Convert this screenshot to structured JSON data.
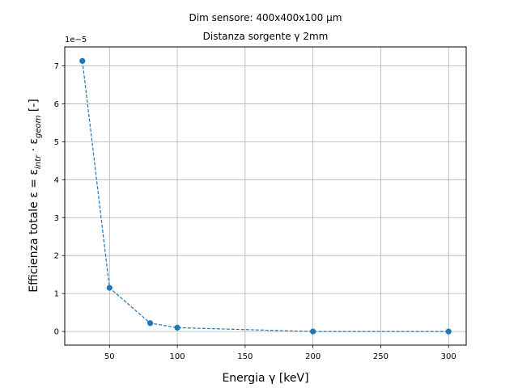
{
  "chart_data": {
    "type": "line",
    "title_line1": "Dim sensore: 400x400x100 μm",
    "title_line2": "Distanza sorgente γ 2mm",
    "xlabel": "Energia γ [keV]",
    "ylabel_main": "Efficienza totale ε = ε",
    "ylabel_sub1": "intr",
    "ylabel_dot": " · ε",
    "ylabel_sub2": "geom",
    "ylabel_tail": " [-]",
    "y_offset_label": "1e−5",
    "xlim": [
      17,
      313
    ],
    "ylim": [
      -0.36,
      7.5
    ],
    "x_ticks": [
      50,
      100,
      150,
      200,
      250,
      300
    ],
    "y_ticks": [
      0,
      1,
      2,
      3,
      4,
      5,
      6,
      7
    ],
    "grid": true,
    "line_style": "dashed",
    "color": "#1f77b4",
    "series": [
      {
        "x": [
          30,
          50,
          80,
          100,
          200,
          300
        ],
        "y": [
          7.13,
          1.15,
          0.22,
          0.1,
          0.0,
          0.0
        ]
      }
    ]
  }
}
